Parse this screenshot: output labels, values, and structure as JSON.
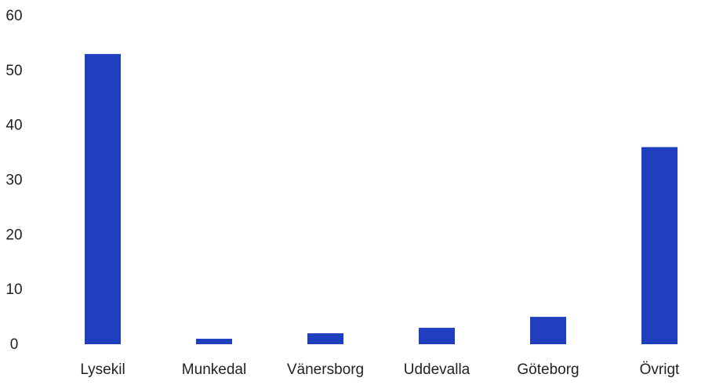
{
  "chart_data": {
    "type": "bar",
    "categories": [
      "Lysekil",
      "Munkedal",
      "Vänersborg",
      "Uddevalla",
      "Göteborg",
      "Övrigt"
    ],
    "values": [
      53,
      1,
      2,
      3,
      5,
      36
    ],
    "title": "",
    "xlabel": "",
    "ylabel": "",
    "ylim": [
      0,
      60
    ],
    "yticks": [
      0,
      10,
      20,
      30,
      40,
      50,
      60
    ],
    "grid": false,
    "legend": "none",
    "bar_color": "#1f3fbf"
  }
}
